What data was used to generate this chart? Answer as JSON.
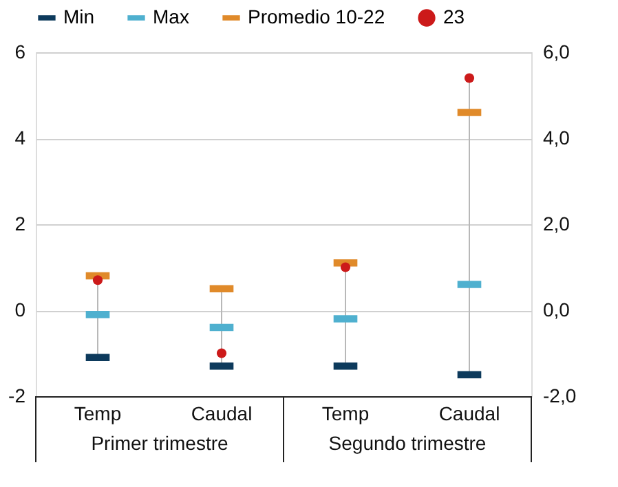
{
  "chart_data": {
    "type": "scatter",
    "categories": [
      "Temp",
      "Caudal",
      "Temp",
      "Caudal"
    ],
    "series": [
      {
        "name": "Min",
        "color": "#0d3a5c",
        "values": [
          -1.1,
          -1.3,
          -1.3,
          -1.5
        ]
      },
      {
        "name": "Max",
        "color": "#4fb0cf",
        "values": [
          -0.1,
          -0.4,
          -0.2,
          0.6
        ]
      },
      {
        "name": "Promedio 10-22",
        "color": "#e08a2a",
        "values": [
          0.8,
          0.5,
          1.1,
          4.6
        ]
      },
      {
        "name": "23",
        "color": "#cc1a1a",
        "marker": "circle",
        "values": [
          0.7,
          -1.0,
          1.0,
          5.4
        ]
      }
    ],
    "ylim": [
      -2,
      6
    ],
    "yticks": [
      -2,
      0,
      2,
      4,
      6
    ],
    "y2lim": [
      -2,
      6
    ],
    "y2ticks": [
      {
        "value": -2,
        "label": "-2,0"
      },
      {
        "value": 0,
        "label": "0,0"
      },
      {
        "value": 2,
        "label": "2,0"
      },
      {
        "value": 4,
        "label": "4,0"
      },
      {
        "value": 6,
        "label": "6,0"
      }
    ],
    "annotations": [
      "Primer trimestre",
      "Segundo trimestre"
    ],
    "grid": "y",
    "legend": "top"
  }
}
